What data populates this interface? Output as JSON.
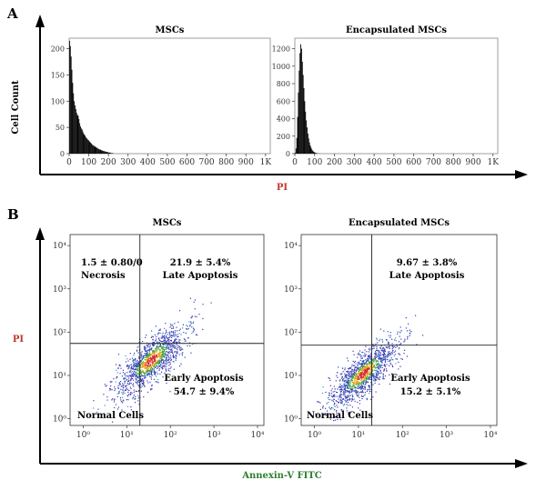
{
  "figure": {
    "colors": {
      "pi_label": "#c0392b",
      "annexin_label": "#2e7d32",
      "axis": "#000000",
      "histogram": "#000000"
    },
    "panel_a": {
      "letter": "A",
      "ylabel": "Cell Count",
      "xlabel": "PI"
    },
    "panel_b": {
      "letter": "B",
      "ylabel": "PI",
      "xlabel": "Annexin-V FITC"
    }
  },
  "chart_data": [
    {
      "type": "bar",
      "subtype": "histogram",
      "panel": "A-left",
      "title": "MSCs",
      "ylabel": "Cell Count",
      "xlabel": "PI",
      "xlim": [
        0,
        1024
      ],
      "ylim": [
        0,
        220
      ],
      "x_ticks": [
        "0",
        "100",
        "200",
        "300",
        "400",
        "500",
        "600",
        "700",
        "800",
        "900",
        "1K"
      ],
      "y_ticks": [
        "0",
        "50",
        "100",
        "150",
        "200"
      ],
      "x": [
        0,
        4,
        8,
        12,
        16,
        20,
        24,
        28,
        32,
        36,
        40,
        44,
        48,
        52,
        56,
        60,
        64,
        68,
        72,
        76,
        80,
        84,
        88,
        92,
        96,
        100,
        104,
        108,
        112,
        116,
        120,
        124,
        128,
        132,
        136,
        140,
        144,
        148,
        152,
        156,
        160,
        164,
        168,
        172,
        176,
        180,
        184,
        188,
        192,
        196,
        200,
        204,
        208,
        212,
        216,
        220
      ],
      "values": [
        215,
        205,
        185,
        160,
        135,
        115,
        100,
        92,
        85,
        78,
        74,
        72,
        66,
        58,
        52,
        48,
        46,
        42,
        38,
        36,
        34,
        31,
        29,
        27,
        26,
        24,
        22,
        21,
        19,
        17,
        16,
        15,
        14,
        13,
        12,
        11,
        10,
        9,
        8,
        8,
        7,
        6,
        6,
        5,
        5,
        4,
        4,
        3,
        3,
        3,
        2,
        2,
        2,
        1,
        1,
        1
      ]
    },
    {
      "type": "bar",
      "subtype": "histogram",
      "panel": "A-right",
      "title": "Encapsulated MSCs",
      "ylabel": "Cell Count",
      "xlabel": "PI",
      "xlim": [
        0,
        1024
      ],
      "ylim": [
        0,
        1320
      ],
      "x_ticks": [
        "0",
        "100",
        "200",
        "300",
        "400",
        "500",
        "600",
        "700",
        "800",
        "900",
        "1K"
      ],
      "y_ticks": [
        "0",
        "200",
        "400",
        "600",
        "800",
        "1000",
        "1200"
      ],
      "x": [
        0,
        4,
        8,
        12,
        16,
        20,
        24,
        28,
        32,
        36,
        40,
        44,
        48,
        52,
        56,
        60,
        64,
        68,
        72,
        76,
        80,
        84,
        88,
        92,
        96,
        100,
        104,
        108,
        112,
        116,
        120
      ],
      "values": [
        10,
        60,
        180,
        420,
        700,
        950,
        1150,
        1250,
        1200,
        1050,
        900,
        750,
        600,
        480,
        380,
        300,
        230,
        175,
        130,
        95,
        70,
        50,
        35,
        25,
        18,
        12,
        8,
        5,
        3,
        2,
        1
      ]
    },
    {
      "type": "scatter",
      "subtype": "flow-cytometry-quadrant",
      "panel": "B-left",
      "title": "MSCs",
      "xlabel": "Annexin-V FITC",
      "ylabel": "PI",
      "x_scale": "log",
      "y_scale": "log",
      "xlim": [
        0.5,
        14000
      ],
      "ylim": [
        0.7,
        18000
      ],
      "x_ticks": [
        "10⁰",
        "10¹",
        "10²",
        "10³",
        "10⁴"
      ],
      "y_ticks": [
        "10⁰",
        "10¹",
        "10²",
        "10³",
        "10⁴"
      ],
      "gates": {
        "x": 20,
        "y": 55
      },
      "quadrants": {
        "upper_left": {
          "value": "1.5 ± 0.80/0",
          "label": "Necrosis"
        },
        "upper_right": {
          "value": "21.9 ± 5.4%",
          "label": "Late Apoptosis"
        },
        "lower_right": {
          "value": "54.7 ± 9.4%",
          "label": "Early Apoptosis"
        },
        "lower_left": {
          "value": "",
          "label": "Normal Cells"
        }
      },
      "population": {
        "points": 1300,
        "center_log": [
          1.55,
          1.35
        ],
        "spread_major": 0.55,
        "spread_minor": 0.2
      }
    },
    {
      "type": "scatter",
      "subtype": "flow-cytometry-quadrant",
      "panel": "B-right",
      "title": "Encapsulated MSCs",
      "xlabel": "Annexin-V FITC",
      "ylabel": "PI",
      "x_scale": "log",
      "y_scale": "log",
      "xlim": [
        0.5,
        14000
      ],
      "ylim": [
        0.7,
        18000
      ],
      "x_ticks": [
        "10⁰",
        "10¹",
        "10²",
        "10³",
        "10⁴"
      ],
      "y_ticks": [
        "10⁰",
        "10¹",
        "10²",
        "10³",
        "10⁴"
      ],
      "gates": {
        "x": 20,
        "y": 50
      },
      "quadrants": {
        "upper_left": {
          "value": "",
          "label": ""
        },
        "upper_right": {
          "value": "9.67 ± 3.8%",
          "label": "Late Apoptosis"
        },
        "lower_right": {
          "value": "15.2 ± 5.1%",
          "label": "Early Apoptosis"
        },
        "lower_left": {
          "value": "",
          "label": "Normal Cells"
        }
      },
      "population": {
        "points": 1300,
        "center_log": [
          1.1,
          1.05
        ],
        "spread_major": 0.55,
        "spread_minor": 0.18
      }
    }
  ]
}
